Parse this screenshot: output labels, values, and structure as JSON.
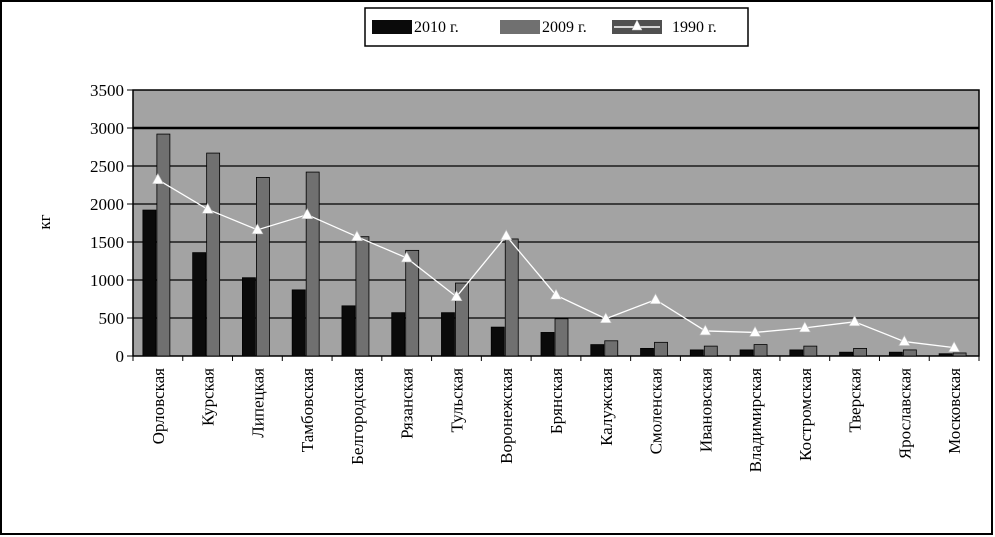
{
  "chart_data": {
    "type": "bar",
    "ylabel": "кг",
    "ylim": [
      0,
      3500
    ],
    "yticks": [
      0,
      500,
      1000,
      1500,
      2000,
      2500,
      3000,
      3500
    ],
    "grid": true,
    "legend_position": "top-center",
    "categories": [
      "Орловская",
      "Курская",
      "Липецкая",
      "Тамбовская",
      "Белгородская",
      "Рязанская",
      "Тульская",
      "Воронежская",
      "Брянская",
      "Калужская",
      "Смоленская",
      "Ивановская",
      "Владимирская",
      "Костромская",
      "Тверская",
      "Ярославская",
      "Московская"
    ],
    "series": [
      {
        "name": "2010 г.",
        "kind": "bar",
        "color": "#0a0a0a",
        "values": [
          1920,
          1360,
          1030,
          870,
          660,
          570,
          570,
          380,
          310,
          150,
          100,
          80,
          80,
          80,
          50,
          50,
          30
        ]
      },
      {
        "name": "2009 г.",
        "kind": "bar",
        "color": "#707070",
        "values": [
          2920,
          2670,
          2350,
          2420,
          1570,
          1390,
          960,
          1540,
          490,
          200,
          180,
          130,
          150,
          130,
          100,
          80,
          40
        ]
      },
      {
        "name": "1990 г.",
        "kind": "line",
        "color": "#ffffff",
        "values": [
          2320,
          1930,
          1660,
          1860,
          1570,
          1290,
          780,
          1580,
          800,
          490,
          740,
          330,
          310,
          370,
          450,
          190,
          110
        ]
      }
    ]
  },
  "colors": {
    "plot_background": "#a3a3a3",
    "frame": "#000000"
  }
}
